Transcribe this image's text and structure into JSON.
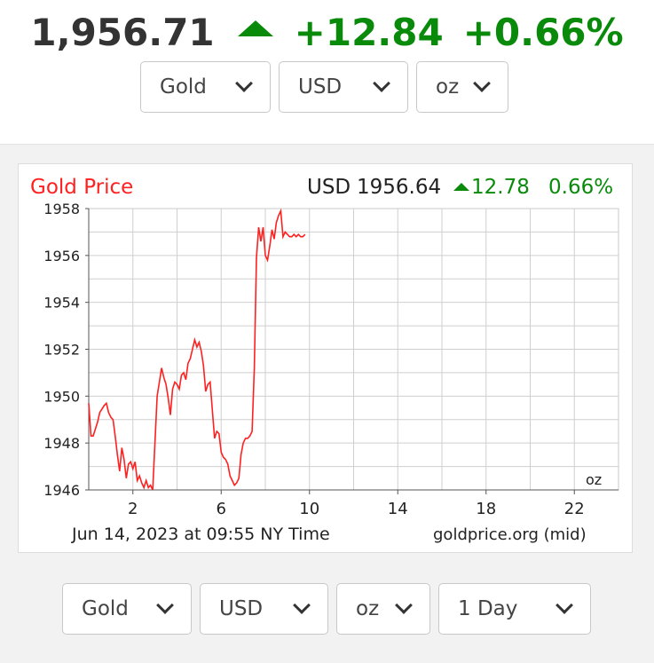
{
  "header": {
    "price": "1,956.71",
    "change": "+12.84",
    "change_pct": "+0.66%",
    "trend_icon": "triangle-up-icon"
  },
  "top_selectors": {
    "metal": "Gold",
    "currency": "USD",
    "unit": "oz"
  },
  "chart_header": {
    "title": "Gold Price",
    "currency": "USD",
    "price": "1956.64",
    "change": "12.78",
    "change_pct": "0.66%"
  },
  "chart_footer": {
    "timestamp": "Jun 14, 2023 at 09:55 NY Time",
    "source": "goldprice.org (mid)",
    "unit": "oz"
  },
  "bottom_selectors": {
    "metal": "Gold",
    "currency": "USD",
    "unit": "oz",
    "range": "1 Day"
  },
  "colors": {
    "up": "#0a8a0a",
    "line": "#ff2020",
    "title": "#ff2020"
  },
  "chart_data": {
    "type": "line",
    "title": "Gold Price",
    "xlabel": "",
    "ylabel": "",
    "xlim": [
      0,
      24
    ],
    "ylim": [
      1946,
      1958
    ],
    "x_ticks": [
      2,
      6,
      10,
      14,
      18,
      22
    ],
    "y_ticks": [
      1946,
      1948,
      1950,
      1952,
      1954,
      1956,
      1958
    ],
    "grid": true,
    "series": [
      {
        "x": [
          0.0,
          0.1,
          0.2,
          0.4,
          0.5,
          0.7,
          0.8,
          0.9,
          1.0,
          1.1,
          1.2,
          1.3,
          1.4,
          1.5,
          1.6,
          1.7,
          1.8,
          1.9,
          2.0,
          2.1,
          2.2,
          2.3,
          2.4,
          2.5,
          2.6,
          2.7,
          2.8,
          2.9,
          3.0,
          3.1,
          3.3,
          3.4,
          3.5,
          3.6,
          3.7,
          3.8,
          3.9,
          4.0,
          4.1,
          4.2,
          4.3,
          4.4,
          4.5,
          4.6,
          4.7,
          4.8,
          4.9,
          5.0,
          5.1,
          5.2,
          5.3,
          5.4,
          5.5,
          5.6,
          5.7,
          5.8,
          5.9,
          6.0,
          6.1,
          6.2,
          6.3,
          6.4,
          6.5,
          6.6,
          6.7,
          6.8,
          6.9,
          7.0,
          7.1,
          7.2,
          7.3,
          7.4,
          7.5,
          7.6,
          7.7,
          7.8,
          7.9,
          8.0,
          8.1,
          8.2,
          8.3,
          8.4,
          8.5,
          8.6,
          8.7,
          8.8,
          8.9,
          9.0,
          9.1,
          9.2,
          9.3,
          9.4,
          9.5,
          9.6,
          9.7,
          9.8
        ],
        "values": [
          1949.7,
          1948.3,
          1948.3,
          1948.9,
          1949.3,
          1949.6,
          1949.7,
          1949.3,
          1949.1,
          1949.0,
          1948.3,
          1947.5,
          1946.8,
          1947.8,
          1947.3,
          1946.5,
          1947.1,
          1947.2,
          1946.9,
          1947.2,
          1946.4,
          1946.6,
          1946.3,
          1946.1,
          1946.4,
          1946.1,
          1946.2,
          1946.0,
          1948.0,
          1950.0,
          1951.2,
          1950.8,
          1950.5,
          1949.9,
          1949.2,
          1950.3,
          1950.6,
          1950.5,
          1950.3,
          1950.9,
          1951.0,
          1950.7,
          1951.4,
          1951.6,
          1952.0,
          1952.4,
          1952.1,
          1952.3,
          1951.9,
          1951.3,
          1950.2,
          1950.5,
          1950.6,
          1949.4,
          1948.2,
          1948.5,
          1948.4,
          1947.6,
          1947.4,
          1947.3,
          1947.1,
          1946.6,
          1946.4,
          1946.2,
          1946.3,
          1946.5,
          1947.5,
          1948.0,
          1948.2,
          1948.2,
          1948.3,
          1948.5,
          1951.2,
          1955.9,
          1957.2,
          1956.6,
          1957.2,
          1956.0,
          1955.8,
          1956.4,
          1957.1,
          1956.7,
          1957.4,
          1957.7,
          1957.9,
          1956.8,
          1957.0,
          1956.9,
          1956.8,
          1956.8,
          1956.9,
          1956.8,
          1956.9,
          1956.8,
          1956.8,
          1956.9
        ]
      }
    ]
  }
}
